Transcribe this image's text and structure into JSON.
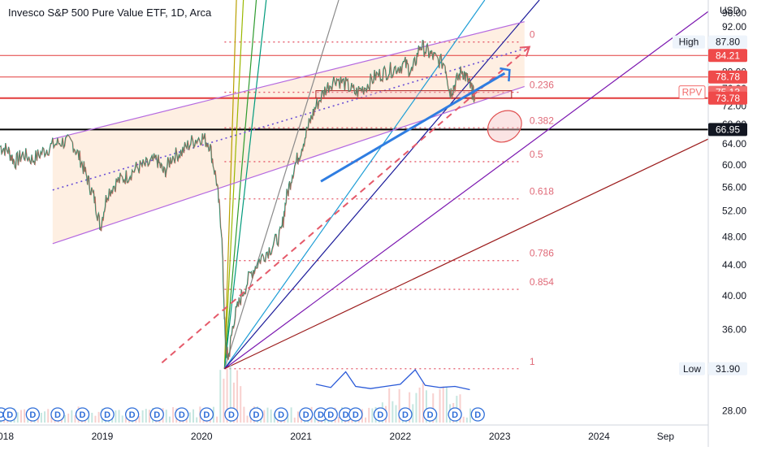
{
  "chart_data": {
    "type": "line",
    "title": "Invesco S&P 500 Pure Value ETF, 1D, Arca",
    "currency_label": "USD",
    "y_scale": "log",
    "ylim": [
      27,
      100
    ],
    "x_range": [
      2017.97,
      2025.1
    ],
    "x_ticks": [
      {
        "label": "2018",
        "x": 2018.0
      },
      {
        "label": "2019",
        "x": 2019.0
      },
      {
        "label": "2020",
        "x": 2020.0
      },
      {
        "label": "2021",
        "x": 2021.0
      },
      {
        "label": "2022",
        "x": 2022.0
      },
      {
        "label": "2023",
        "x": 2023.0
      },
      {
        "label": "2024",
        "x": 2024.0
      },
      {
        "label": "Sep",
        "x": 2024.67
      }
    ],
    "y_ticks": [
      "28.00",
      "32.00",
      "36.00",
      "40.00",
      "44.00",
      "48.00",
      "52.00",
      "56.00",
      "60.00",
      "64.00",
      "68.00",
      "72.00",
      "76.00",
      "80.00",
      "84.00",
      "88.00",
      "92.00",
      "96.00"
    ],
    "price_series": {
      "name": "RPV",
      "color": "#26a69a",
      "points": [
        [
          2017.97,
          63.5
        ],
        [
          2018.05,
          62.8
        ],
        [
          2018.12,
          60.5
        ],
        [
          2018.2,
          62.0
        ],
        [
          2018.3,
          61.0
        ],
        [
          2018.4,
          62.5
        ],
        [
          2018.5,
          63.8
        ],
        [
          2018.6,
          64.5
        ],
        [
          2018.7,
          64.2
        ],
        [
          2018.78,
          61.0
        ],
        [
          2018.85,
          57.5
        ],
        [
          2018.92,
          54.0
        ],
        [
          2018.98,
          49.5
        ],
        [
          2019.05,
          55.0
        ],
        [
          2019.15,
          57.0
        ],
        [
          2019.25,
          58.0
        ],
        [
          2019.35,
          59.5
        ],
        [
          2019.45,
          60.0
        ],
        [
          2019.55,
          61.0
        ],
        [
          2019.62,
          58.5
        ],
        [
          2019.7,
          61.5
        ],
        [
          2019.8,
          62.5
        ],
        [
          2019.9,
          64.5
        ],
        [
          2020.0,
          65.5
        ],
        [
          2020.08,
          64.0
        ],
        [
          2020.15,
          57.0
        ],
        [
          2020.2,
          49.0
        ],
        [
          2020.24,
          34.0
        ],
        [
          2020.27,
          33.0
        ],
        [
          2020.32,
          37.0
        ],
        [
          2020.4,
          40.0
        ],
        [
          2020.5,
          43.0
        ],
        [
          2020.6,
          45.0
        ],
        [
          2020.7,
          46.5
        ],
        [
          2020.8,
          48.5
        ],
        [
          2020.85,
          54.0
        ],
        [
          2020.92,
          59.0
        ],
        [
          2021.0,
          63.0
        ],
        [
          2021.08,
          68.0
        ],
        [
          2021.15,
          72.0
        ],
        [
          2021.25,
          76.0
        ],
        [
          2021.35,
          78.5
        ],
        [
          2021.45,
          77.0
        ],
        [
          2021.55,
          75.0
        ],
        [
          2021.65,
          76.5
        ],
        [
          2021.75,
          79.0
        ],
        [
          2021.85,
          80.0
        ],
        [
          2021.95,
          81.0
        ],
        [
          2022.05,
          82.0
        ],
        [
          2022.12,
          80.0
        ],
        [
          2022.2,
          87.0
        ],
        [
          2022.28,
          85.0
        ],
        [
          2022.35,
          83.5
        ],
        [
          2022.45,
          82.0
        ],
        [
          2022.5,
          75.0
        ],
        [
          2022.55,
          77.0
        ],
        [
          2022.62,
          80.5
        ],
        [
          2022.68,
          78.0
        ],
        [
          2022.72,
          75.5
        ],
        [
          2022.75,
          74.0
        ]
      ]
    },
    "volume_profile": {
      "points": [
        [
          2021.15,
          30.4
        ],
        [
          2021.3,
          30.1
        ],
        [
          2021.45,
          31.6
        ],
        [
          2021.55,
          30.2
        ],
        [
          2021.7,
          30.0
        ],
        [
          2021.85,
          30.2
        ],
        [
          2022.0,
          30.4
        ],
        [
          2022.15,
          31.8
        ],
        [
          2022.25,
          30.3
        ],
        [
          2022.4,
          30.1
        ],
        [
          2022.55,
          30.2
        ],
        [
          2022.7,
          29.9
        ]
      ]
    },
    "fib_levels": [
      {
        "label": "0",
        "price": 87.8
      },
      {
        "label": "0.236",
        "price": 75.13
      },
      {
        "label": "0.382",
        "price": 67.3
      },
      {
        "label": "0.5",
        "price": 60.6
      },
      {
        "label": "0.618",
        "price": 54.0
      },
      {
        "label": "0.786",
        "price": 44.6
      },
      {
        "label": "0.854",
        "price": 40.8
      },
      {
        "label": "1",
        "price": 31.9
      }
    ],
    "horizontal_lines": [
      {
        "price": 84.21,
        "color": "#e23b3b",
        "width": 1
      },
      {
        "price": 78.78,
        "color": "#e23b3b",
        "width": 1
      },
      {
        "price": 73.78,
        "color": "#e23b3b",
        "width": 2
      },
      {
        "price": 66.95,
        "color": "#000000",
        "width": 2
      }
    ],
    "price_labels": [
      {
        "text": "87.80",
        "price": 87.8,
        "kind": "outline",
        "tag": "High"
      },
      {
        "text": "84.21",
        "price": 84.21,
        "kind": "red"
      },
      {
        "text": "78.78",
        "price": 78.78,
        "kind": "red"
      },
      {
        "text": "75.13",
        "price": 75.13,
        "kind": "pink",
        "tag": "RPV"
      },
      {
        "text": "73.78",
        "price": 73.78,
        "kind": "red"
      },
      {
        "text": "66.95",
        "price": 66.95,
        "kind": "black"
      },
      {
        "text": "31.90",
        "price": 31.9,
        "kind": "outline",
        "tag": "Low"
      }
    ],
    "channel": {
      "upper": [
        [
          2018.5,
          65.0
        ],
        [
          2023.25,
          93.5
        ]
      ],
      "lower": [
        [
          2018.5,
          47.0
        ],
        [
          2023.25,
          76.5
        ]
      ],
      "mid": [
        [
          2018.5,
          55.5
        ],
        [
          2023.25,
          86.0
        ]
      ],
      "fill": "#fde4cf",
      "line_color": "#b56ae0"
    },
    "rectangle": {
      "x0": 2021.15,
      "x1": 2023.12,
      "y0": 73.8,
      "y1": 75.5
    },
    "gann_fan": {
      "origin": [
        2020.23,
        31.9
      ],
      "targets": [
        {
          "to": [
            2020.35,
            100
          ],
          "color": "#b8a000"
        },
        {
          "to": [
            2020.42,
            100
          ],
          "color": "#9ab800"
        },
        {
          "to": [
            2020.55,
            100
          ],
          "color": "#2e9b2e"
        },
        {
          "to": [
            2020.65,
            100
          ],
          "color": "#009a7c"
        },
        {
          "to": [
            2021.38,
            100
          ],
          "color": "#8a8a8a"
        },
        {
          "to": [
            2022.85,
            100
          ],
          "color": "#1e9ed6"
        },
        {
          "to": [
            2023.4,
            100
          ],
          "color": "#1b1b9a"
        },
        {
          "to": [
            2025.1,
            96.5
          ],
          "color": "#7b17b0"
        },
        {
          "to": [
            2025.1,
            65.0
          ],
          "color": "#9b1b1b"
        }
      ]
    },
    "dashed_trend": {
      "from": [
        2019.6,
        32.5
      ],
      "to": [
        2023.3,
        86.5
      ],
      "color": "#e55a6a"
    },
    "blue_arrow": {
      "from": [
        2021.2,
        57.0
      ],
      "to": [
        2023.1,
        80.5
      ],
      "color": "#2f7de1"
    },
    "ellipse": {
      "center": [
        2023.05,
        67.6
      ],
      "color": "#e05050"
    },
    "dividend_markers": {
      "label": "D",
      "x": [
        2017.98,
        2018.07,
        2018.3,
        2018.55,
        2018.8,
        2019.05,
        2019.3,
        2019.55,
        2019.8,
        2020.05,
        2020.3,
        2020.55,
        2020.8,
        2021.05,
        2021.2,
        2021.3,
        2021.45,
        2021.55,
        2021.8,
        2022.05,
        2022.3,
        2022.55,
        2022.78
      ]
    }
  }
}
